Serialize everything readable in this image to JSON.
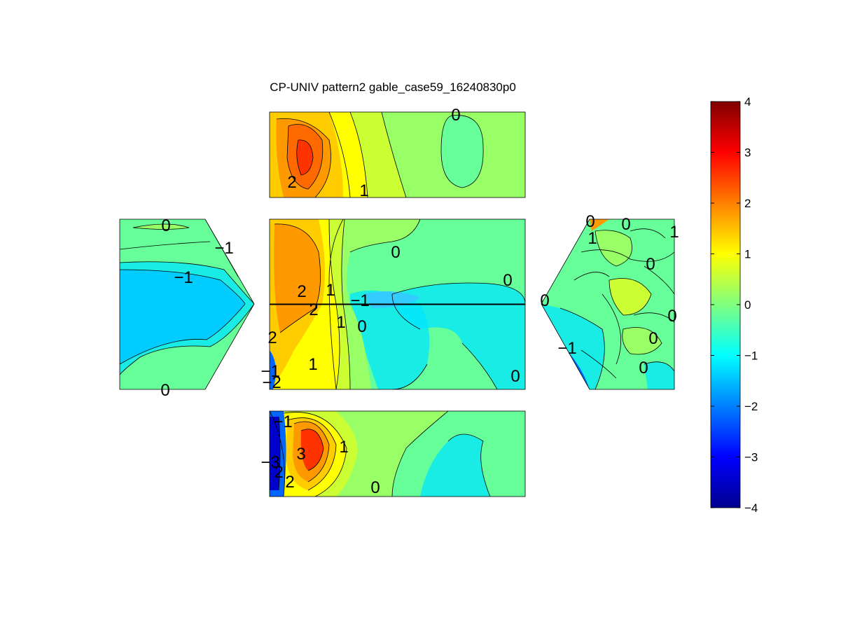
{
  "chart_data": {
    "type": "contour",
    "title": "CP-UNIV pattern2 gable_case59_16240830p0",
    "colormap": "jet",
    "colorbar": {
      "range": [
        -4,
        4
      ],
      "ticks": [
        "4",
        "3",
        "2",
        "1",
        "0",
        "−1",
        "−2",
        "−3",
        "−4"
      ]
    },
    "panels": [
      {
        "id": "top-face",
        "labels": [
          "0",
          "2",
          "1"
        ]
      },
      {
        "id": "left-gable",
        "labels": [
          "0",
          "−1",
          "−1",
          "0"
        ]
      },
      {
        "id": "center-face",
        "labels": [
          "0",
          "0",
          "2",
          "1",
          "2",
          "−1",
          "1",
          "0",
          "2",
          "1",
          "−1",
          "−2",
          "0"
        ]
      },
      {
        "id": "right-gable",
        "labels": [
          "0",
          "0",
          "1",
          "0",
          "0",
          "0",
          "0",
          "−1",
          "0",
          "1"
        ]
      },
      {
        "id": "bottom-face",
        "labels": [
          "−1",
          "−3",
          "3",
          "1",
          "2",
          "2",
          "0"
        ]
      }
    ]
  }
}
